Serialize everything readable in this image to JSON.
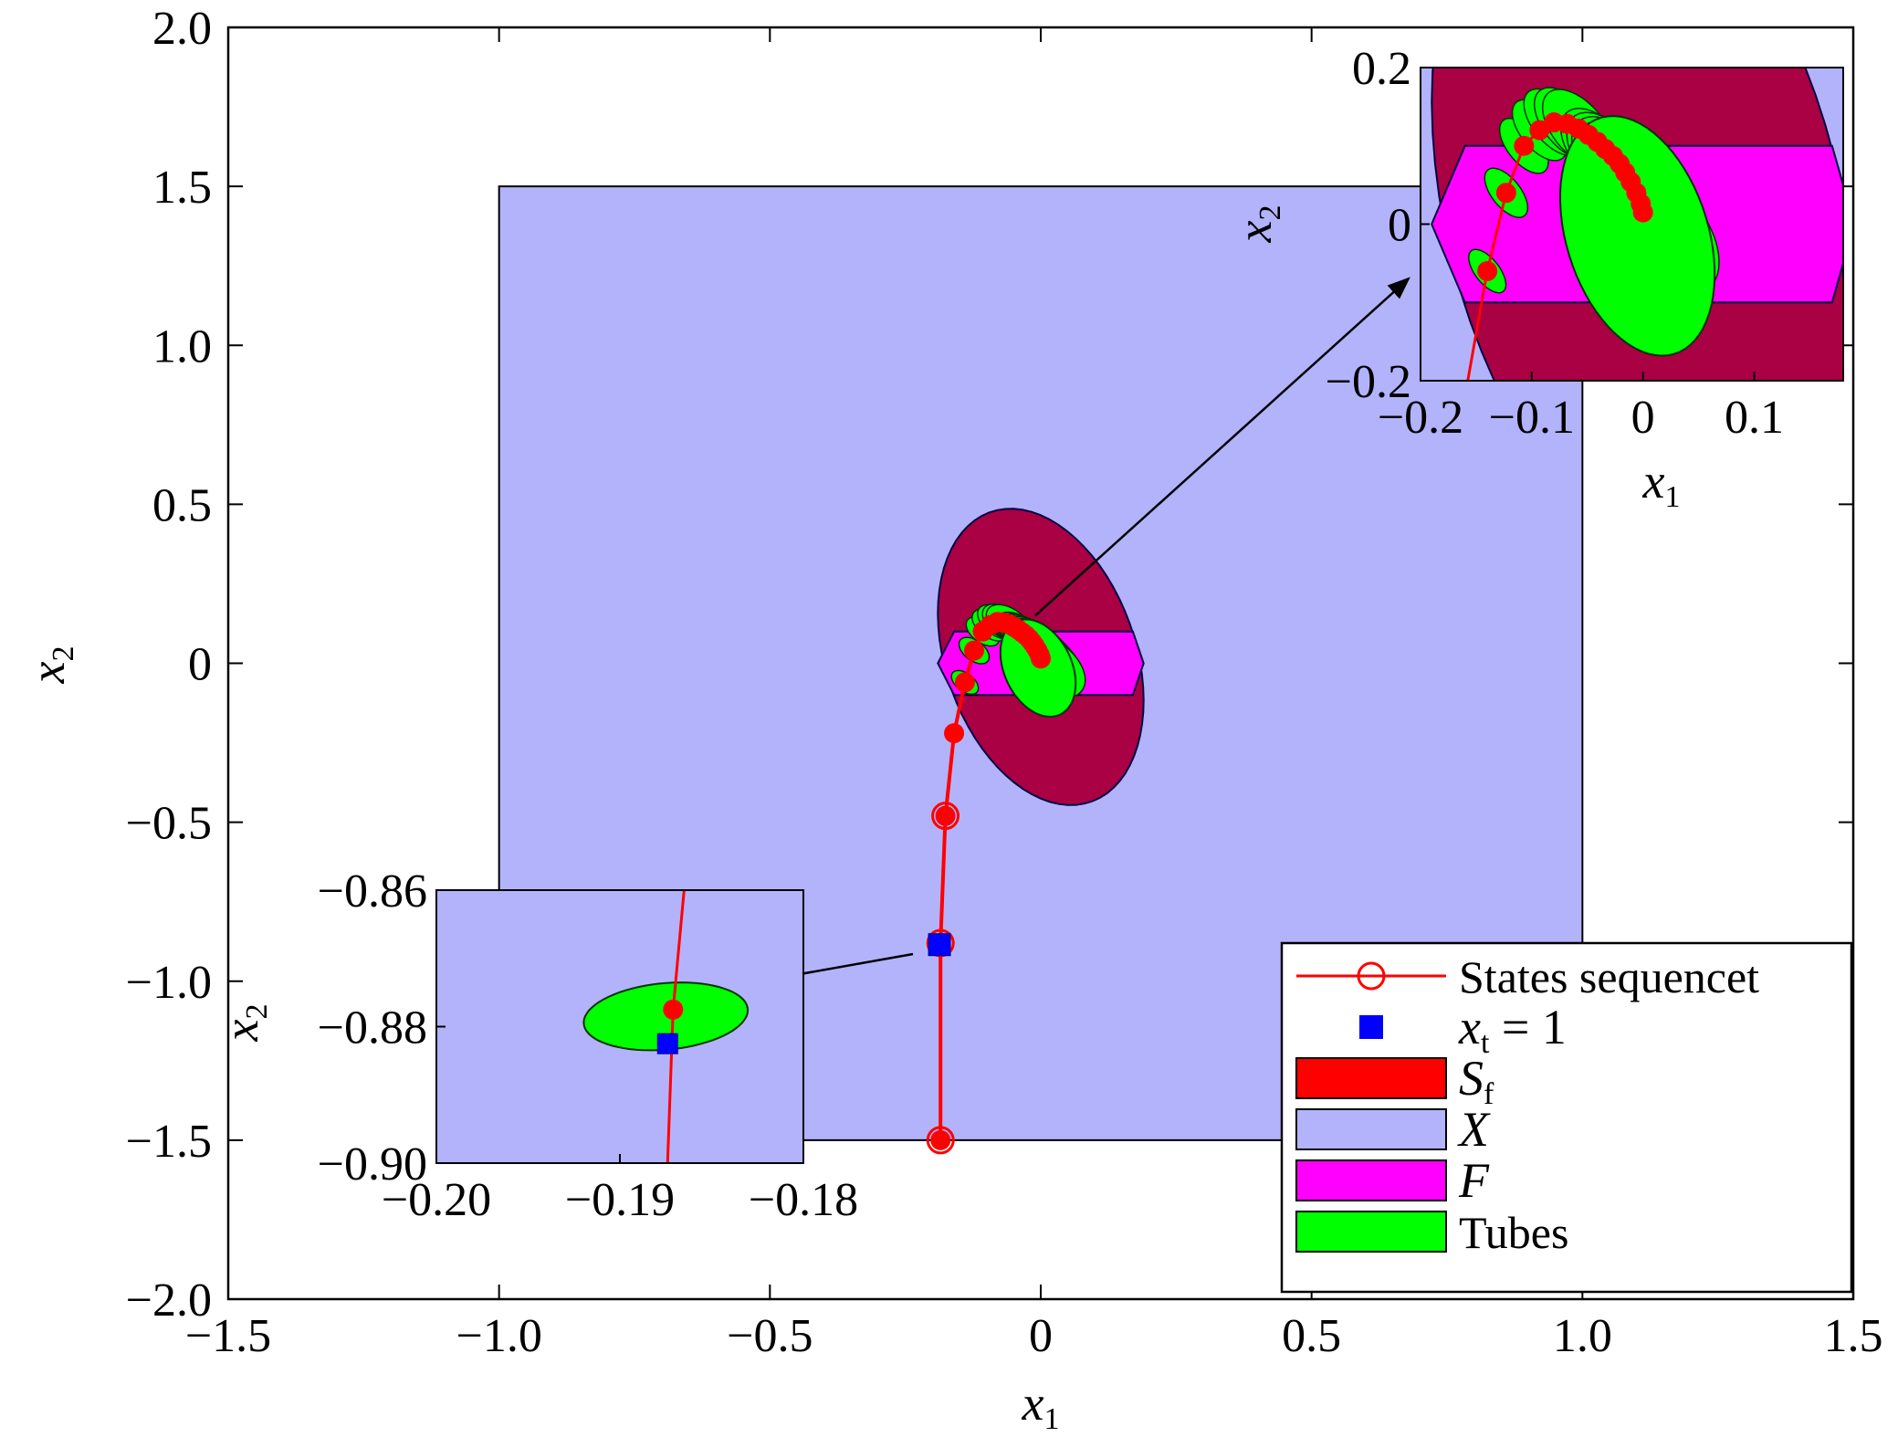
{
  "chart_data": {
    "type": "scatter",
    "title": "",
    "main": {
      "xlim": [
        -1.5,
        1.5
      ],
      "ylim": [
        -2.0,
        2.0
      ],
      "xticks": [
        -1.5,
        -1.0,
        -0.5,
        0,
        0.5,
        1.0,
        1.5
      ],
      "xtick_labels": [
        "−1.5",
        "−1.0",
        "−0.5",
        "0",
        "0.5",
        "1.0",
        "1.5"
      ],
      "yticks": [
        -2.0,
        -1.5,
        -1.0,
        -0.5,
        0,
        0.5,
        1.0,
        1.5,
        2.0
      ],
      "ytick_labels": [
        "−2.0",
        "−1.5",
        "−1.0",
        "−0.5",
        "0",
        "0.5",
        "1.0",
        "1.5",
        "2.0"
      ],
      "xlabel": "x",
      "xlabel_sub": "1",
      "ylabel": "x",
      "ylabel_sub": "2",
      "grid": false
    },
    "sets": {
      "state_constraint_X": {
        "x": [
          -1.0,
          1.0
        ],
        "y": [
          -1.5,
          1.5
        ],
        "color": "#b3b3fc"
      },
      "terminal_Sf": {
        "center": [
          0.0,
          0.02
        ],
        "rx": 0.18,
        "ry": 0.47,
        "rotation_deg": 8,
        "color": "#aa0044"
      },
      "F_polygon": [
        [
          -0.19,
          0.0
        ],
        [
          -0.16,
          0.1
        ],
        [
          0.17,
          0.1
        ],
        [
          0.19,
          0.0
        ],
        [
          0.17,
          -0.1
        ],
        [
          -0.16,
          -0.1
        ]
      ],
      "F_color": "#ff00ff",
      "tube_color": "#00ff00"
    },
    "series": [
      {
        "name": "States sequencet",
        "color": "#ff0000",
        "x": [
          -0.185,
          -0.185,
          -0.176,
          -0.16,
          -0.14,
          -0.123,
          -0.107,
          -0.093,
          -0.08,
          -0.068,
          -0.058,
          -0.049,
          -0.041,
          -0.034,
          -0.027,
          -0.021,
          -0.016,
          -0.011,
          -0.006,
          -0.002,
          0.0
        ],
        "y": [
          -1.5,
          -0.88,
          -0.48,
          -0.22,
          -0.06,
          0.04,
          0.1,
          0.12,
          0.13,
          0.128,
          0.122,
          0.114,
          0.105,
          0.096,
          0.087,
          0.077,
          0.066,
          0.054,
          0.04,
          0.026,
          0.015
        ]
      },
      {
        "name": "x_t = 1",
        "color": "#0000ff",
        "x": [
          -0.187
        ],
        "y": [
          -0.885
        ]
      }
    ],
    "inset_upper": {
      "xlim": [
        -0.2,
        0.18
      ],
      "ylim": [
        -0.2,
        0.2
      ],
      "xticks": [
        -0.2,
        -0.1,
        0,
        0.1
      ],
      "xtick_labels": [
        "−0.2",
        "−0.1",
        "0",
        "0.1"
      ],
      "yticks": [
        -0.2,
        0,
        0.2
      ],
      "ytick_labels": [
        "−0.2",
        "0",
        "0.2"
      ],
      "xlabel": "x",
      "xlabel_sub": "1",
      "ylabel": "x",
      "ylabel_sub": "2"
    },
    "inset_lower": {
      "xlim": [
        -0.2,
        -0.18
      ],
      "ylim": [
        -0.9,
        -0.86
      ],
      "xticks": [
        -0.2,
        -0.19,
        -0.18
      ],
      "xtick_labels": [
        "−0.20",
        "−0.19",
        "−0.18"
      ],
      "yticks": [
        -0.9,
        -0.88,
        -0.86
      ],
      "ytick_labels": [
        "−0.90",
        "−0.88",
        "−0.86"
      ],
      "ylabel": "x",
      "ylabel_sub": "2",
      "tube": {
        "center": [
          -0.1875,
          -0.8785
        ],
        "rx": 0.0042,
        "ry": 0.0052,
        "rotation_deg": -30
      },
      "state_point": [
        -0.1871,
        -0.8775
      ],
      "xt_point": [
        -0.1874,
        -0.8825
      ]
    },
    "legend": {
      "position": "bottom-right",
      "entries": [
        {
          "label": "States sequencet",
          "kind": "line-marker",
          "color": "#ff0000"
        },
        {
          "label": "x",
          "sub": "t",
          "suffix": " = 1",
          "kind": "square",
          "color": "#0000ff"
        },
        {
          "label": "S",
          "sub": "f",
          "kind": "patch",
          "color": "#ff0000"
        },
        {
          "label": "X",
          "kind": "patch",
          "color": "#b3b3fc"
        },
        {
          "label": "F",
          "kind": "patch",
          "color": "#ff00ff"
        },
        {
          "label": "Tubes",
          "kind": "patch",
          "color": "#00ff00"
        }
      ]
    }
  }
}
